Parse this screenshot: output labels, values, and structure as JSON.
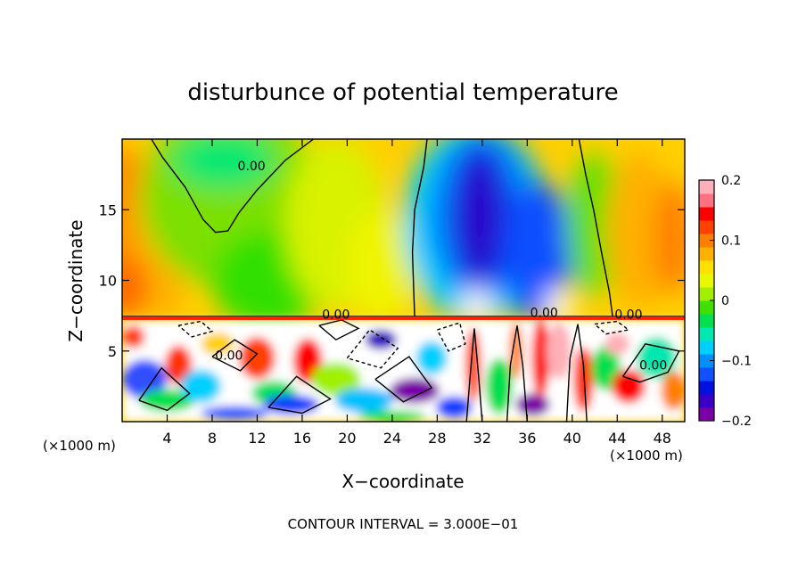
{
  "chart_data": {
    "type": "heatmap",
    "title": "disturbunce of potential temperature",
    "xlabel": "X−coordinate",
    "ylabel": "Z−coordinate",
    "x_unit_label": "(×1000 m)",
    "z_unit_label": "(×1000 m)",
    "footer": "CONTOUR INTERVAL = 3.000E−01",
    "xlim": [
      0,
      50
    ],
    "ylim": [
      0,
      20
    ],
    "x_ticks": [
      4,
      8,
      12,
      16,
      20,
      24,
      28,
      32,
      36,
      40,
      44,
      48
    ],
    "x_tick_labels": [
      "4",
      "8",
      "12",
      "16",
      "20",
      "24",
      "28",
      "32",
      "36",
      "40",
      "44",
      "48"
    ],
    "y_ticks": [
      5,
      10,
      15
    ],
    "y_tick_labels": [
      "5",
      "10",
      "15"
    ],
    "colorbar": {
      "range": [
        -0.2,
        0.2
      ],
      "ticks": [
        0.2,
        0.1,
        0,
        -0.1,
        -0.2
      ],
      "tick_labels": [
        "0.2",
        "0.1",
        "0",
        "−0.1",
        "−0.2"
      ],
      "colors": [
        "#7a00a8",
        "#3a00c8",
        "#0010e0",
        "#1050ff",
        "#0090ff",
        "#00d0ff",
        "#00e8b0",
        "#00e050",
        "#40e000",
        "#a0f000",
        "#e8f800",
        "#ffe000",
        "#ffb000",
        "#ff8000",
        "#ff4000",
        "#ff0000",
        "#ff7080",
        "#ffb0b8"
      ]
    },
    "contour_labels": [
      {
        "text": "0.00",
        "x": 11.5,
        "z": 17.8
      },
      {
        "text": "0.00",
        "x": 19.0,
        "z": 7.3
      },
      {
        "text": "0.00",
        "x": 9.5,
        "z": 4.4
      },
      {
        "text": "0.00",
        "x": 37.5,
        "z": 7.4
      },
      {
        "text": "0.00",
        "x": 45.0,
        "z": 7.3
      },
      {
        "text": "0.00",
        "x": 47.2,
        "z": 3.7
      }
    ]
  }
}
